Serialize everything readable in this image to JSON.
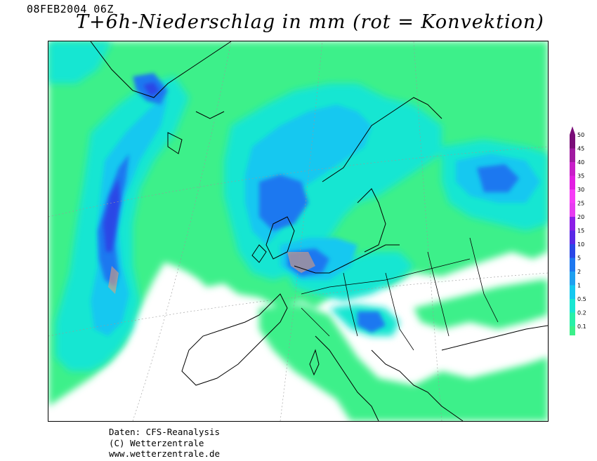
{
  "header": {
    "datestamp": "08FEB2004 06Z",
    "title": "T+6h-Niederschlag in mm (rot = Konvektion)"
  },
  "legend": {
    "unit": "mm",
    "levels": [
      {
        "label": "50",
        "color": "#7a0e78"
      },
      {
        "label": "45",
        "color": "#a01aa0"
      },
      {
        "label": "40",
        "color": "#c81ec8"
      },
      {
        "label": "35",
        "color": "#e21ee2"
      },
      {
        "label": "30",
        "color": "#f63cf6"
      },
      {
        "label": "25",
        "color": "#e63cf0"
      },
      {
        "label": "20",
        "color": "#8c1ee6"
      },
      {
        "label": "15",
        "color": "#5a28e6"
      },
      {
        "label": "10",
        "color": "#2a46e6"
      },
      {
        "label": "5",
        "color": "#1e78f0"
      },
      {
        "label": "2",
        "color": "#1ea0f0"
      },
      {
        "label": "1",
        "color": "#14c8f0"
      },
      {
        "label": "0.5",
        "color": "#18e6d2"
      },
      {
        "label": "0.2",
        "color": "#28f0a8"
      },
      {
        "label": "0.1",
        "color": "#3cf08a"
      }
    ]
  },
  "credits": {
    "line1": "Daten: CFS-Reanalysis",
    "line2": "(C) Wetterzentrale",
    "line3": "www.wetterzentrale.de"
  },
  "colors": {
    "light": "#3cf08a",
    "teal": "#18e6d2",
    "cyan": "#14c8f0",
    "sky": "#1ea0f0",
    "blue": "#1e78f0",
    "deep": "#2a46e6",
    "violet": "#5a28e6",
    "purple": "#8c1ee6",
    "convection": "#f0a070"
  }
}
